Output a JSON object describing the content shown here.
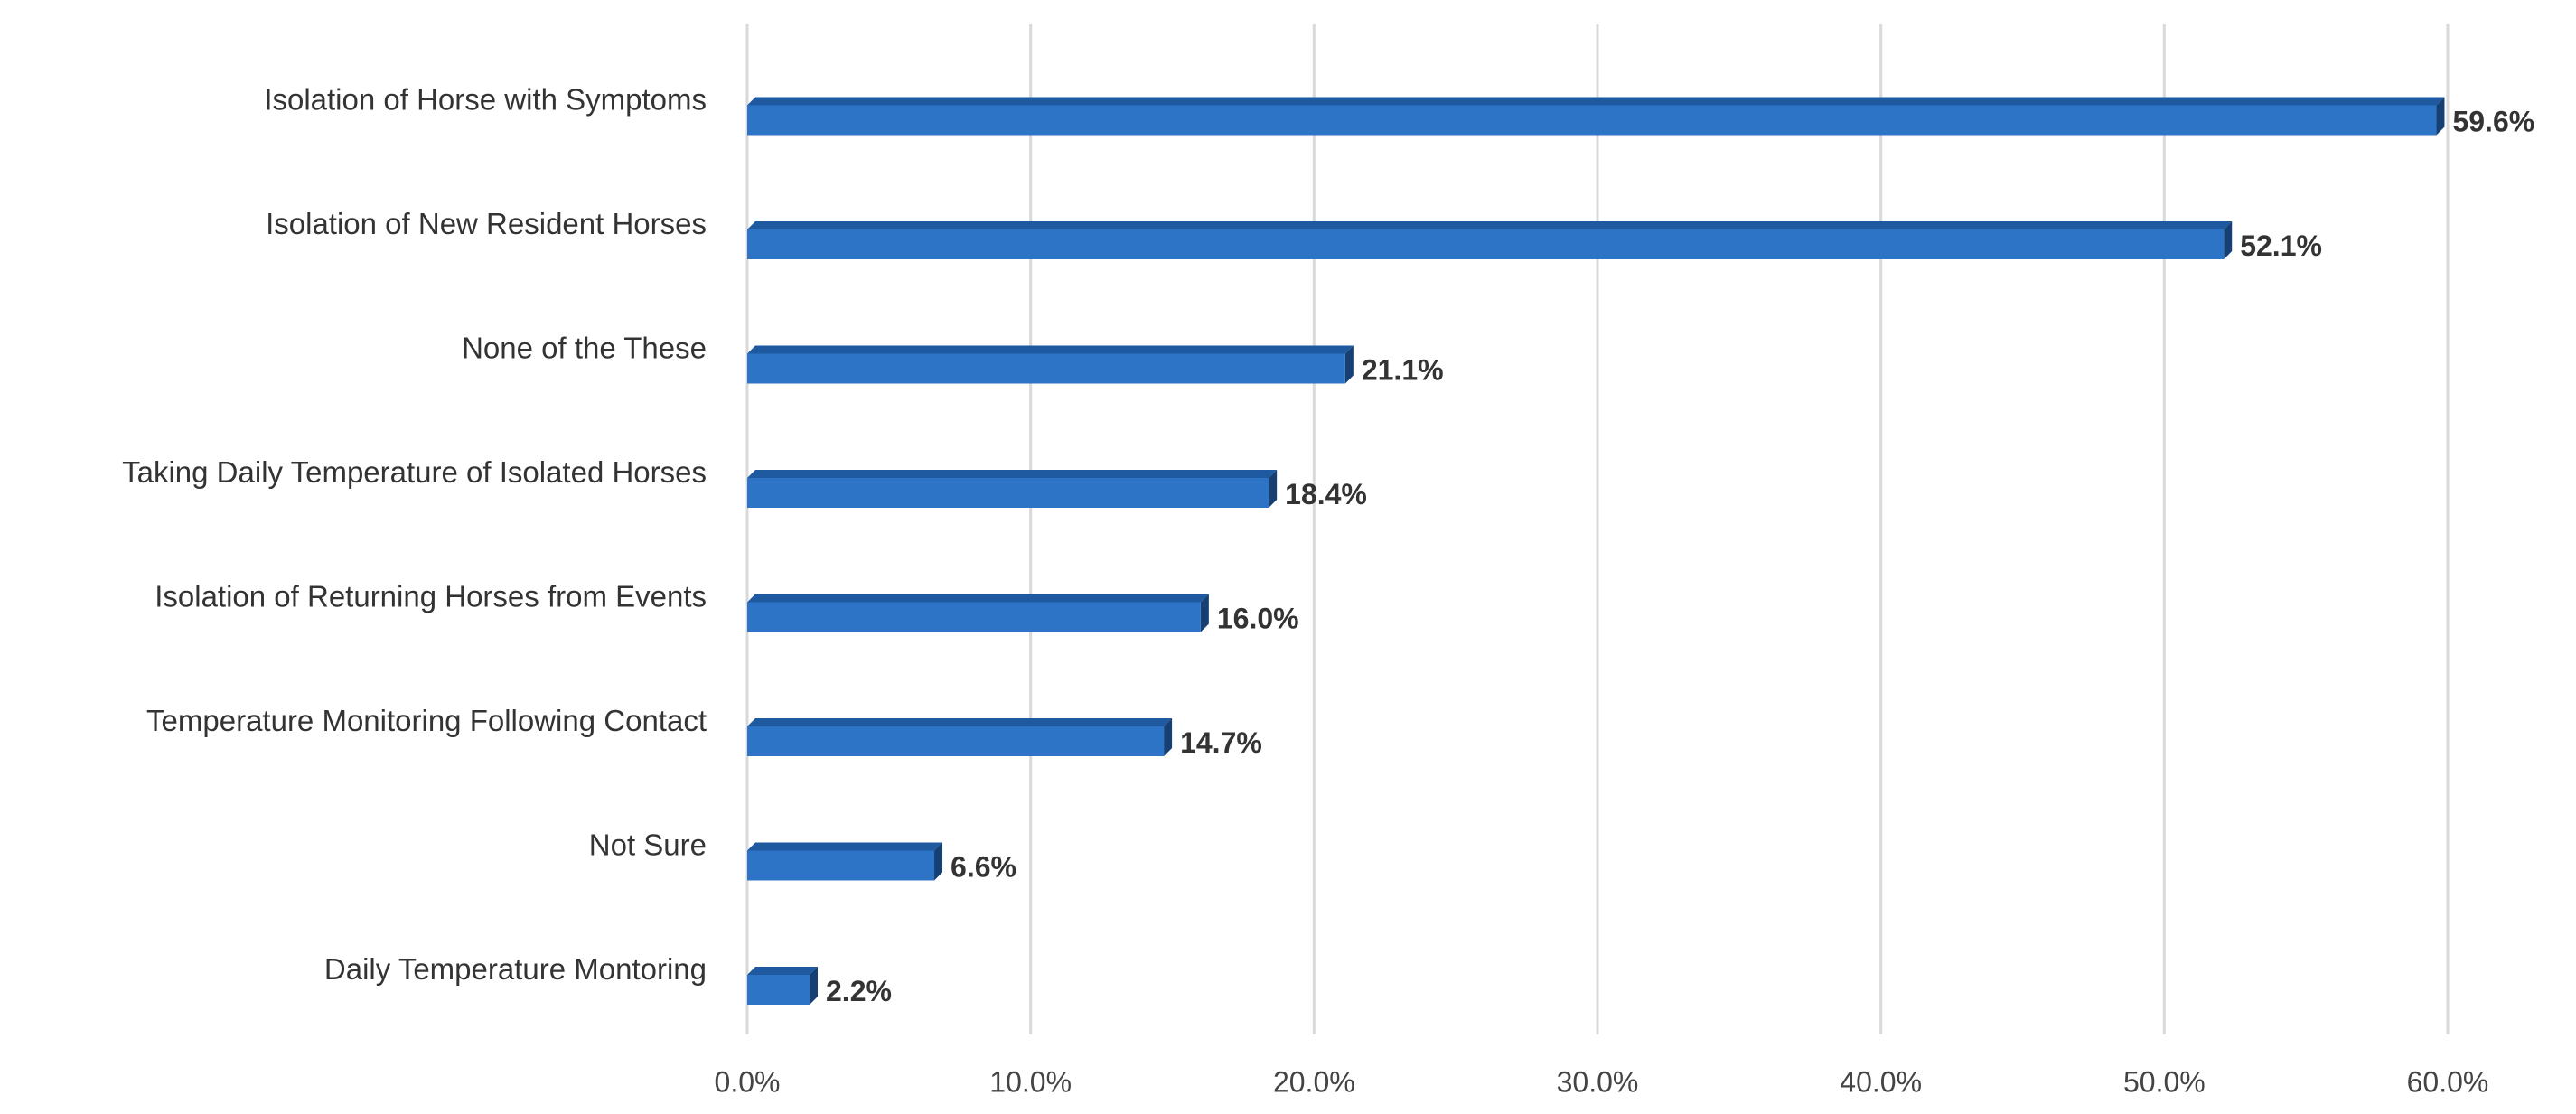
{
  "chart_data": {
    "type": "bar",
    "orientation": "horizontal",
    "categories": [
      "Isolation of Horse with Symptoms",
      "Isolation of New Resident Horses",
      "None of the These",
      "Taking Daily Temperature of Isolated Horses",
      "Isolation of Returning Horses from Events",
      "Temperature Monitoring Following Contact",
      "Not Sure",
      "Daily Temperature Montoring"
    ],
    "values": [
      59.6,
      52.1,
      21.1,
      18.4,
      16.0,
      14.7,
      6.6,
      2.2
    ],
    "value_labels": [
      "59.6%",
      "52.1%",
      "21.1%",
      "18.4%",
      "16.0%",
      "14.7%",
      "6.6%",
      "2.2%"
    ],
    "color": "#2e74c6",
    "xlim": [
      0,
      60
    ],
    "xticks": [
      {
        "value": 0,
        "label": "0.0%"
      },
      {
        "value": 10,
        "label": "10.0%"
      },
      {
        "value": 20,
        "label": "20.0%"
      },
      {
        "value": 30,
        "label": "30.0%"
      },
      {
        "value": 40,
        "label": "40.0%"
      },
      {
        "value": 50,
        "label": "50.0%"
      },
      {
        "value": 60,
        "label": "60.0%"
      }
    ],
    "grid": true
  }
}
